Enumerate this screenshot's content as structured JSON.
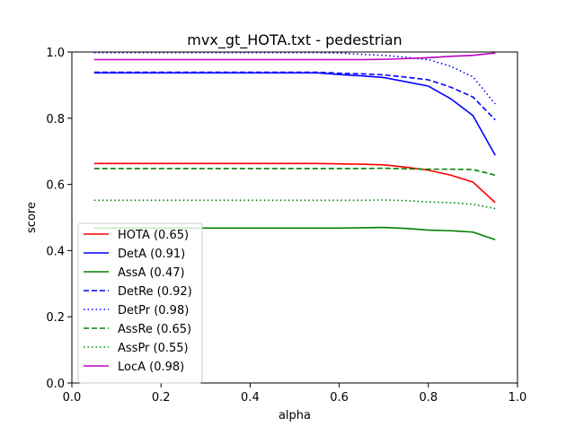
{
  "chart_data": {
    "type": "line",
    "title": "mvx_gt_HOTA.txt - pedestrian",
    "xlabel": "alpha",
    "ylabel": "score",
    "xlim": [
      0.0,
      1.0
    ],
    "ylim": [
      0.0,
      1.0
    ],
    "xticks": [
      "0.0",
      "0.2",
      "0.4",
      "0.6",
      "0.8",
      "1.0"
    ],
    "yticks": [
      "0.0",
      "0.2",
      "0.4",
      "0.6",
      "0.8",
      "1.0"
    ],
    "grid": false,
    "legend_position": "lower-left",
    "x": [
      0.05,
      0.1,
      0.15,
      0.2,
      0.25,
      0.3,
      0.35,
      0.4,
      0.45,
      0.5,
      0.55,
      0.6,
      0.65,
      0.7,
      0.75,
      0.8,
      0.85,
      0.9,
      0.95
    ],
    "series": [
      {
        "name": "HOTA (0.65)",
        "color": "#ff0000",
        "style": "solid",
        "values": [
          0.663,
          0.663,
          0.663,
          0.663,
          0.663,
          0.663,
          0.663,
          0.663,
          0.663,
          0.663,
          0.663,
          0.662,
          0.661,
          0.659,
          0.652,
          0.643,
          0.628,
          0.607,
          0.545
        ]
      },
      {
        "name": "DetA (0.91)",
        "color": "#0000ff",
        "style": "solid",
        "values": [
          0.937,
          0.937,
          0.937,
          0.937,
          0.937,
          0.937,
          0.937,
          0.937,
          0.937,
          0.937,
          0.937,
          0.932,
          0.928,
          0.923,
          0.91,
          0.897,
          0.859,
          0.808,
          0.688
        ]
      },
      {
        "name": "AssA (0.47)",
        "color": "#008000",
        "style": "solid",
        "values": [
          0.468,
          0.468,
          0.468,
          0.468,
          0.468,
          0.468,
          0.468,
          0.468,
          0.468,
          0.468,
          0.468,
          0.468,
          0.469,
          0.47,
          0.467,
          0.462,
          0.46,
          0.456,
          0.433
        ]
      },
      {
        "name": "DetRe (0.92)",
        "color": "#0000ff",
        "style": "dashed",
        "values": [
          0.939,
          0.939,
          0.939,
          0.939,
          0.939,
          0.939,
          0.939,
          0.939,
          0.939,
          0.939,
          0.939,
          0.936,
          0.934,
          0.931,
          0.924,
          0.916,
          0.894,
          0.864,
          0.795
        ]
      },
      {
        "name": "DetPr (0.98)",
        "color": "#0000ff",
        "style": "dotted",
        "values": [
          0.998,
          0.998,
          0.998,
          0.998,
          0.998,
          0.998,
          0.998,
          0.998,
          0.998,
          0.998,
          0.998,
          0.997,
          0.993,
          0.99,
          0.984,
          0.977,
          0.957,
          0.925,
          0.843
        ]
      },
      {
        "name": "AssRe (0.65)",
        "color": "#008000",
        "style": "dashed",
        "values": [
          0.648,
          0.648,
          0.648,
          0.648,
          0.648,
          0.648,
          0.648,
          0.648,
          0.648,
          0.648,
          0.648,
          0.648,
          0.648,
          0.649,
          0.647,
          0.646,
          0.646,
          0.645,
          0.628
        ]
      },
      {
        "name": "AssPr (0.55)",
        "color": "#008000",
        "style": "dotted",
        "values": [
          0.552,
          0.552,
          0.552,
          0.552,
          0.552,
          0.552,
          0.552,
          0.552,
          0.552,
          0.552,
          0.552,
          0.552,
          0.552,
          0.553,
          0.551,
          0.547,
          0.545,
          0.54,
          0.527
        ]
      },
      {
        "name": "LocA (0.98)",
        "color": "#bf00bf",
        "style": "solid",
        "values": [
          0.977,
          0.977,
          0.977,
          0.977,
          0.977,
          0.977,
          0.977,
          0.977,
          0.977,
          0.977,
          0.977,
          0.977,
          0.977,
          0.978,
          0.98,
          0.983,
          0.987,
          0.99,
          0.997
        ]
      }
    ]
  }
}
